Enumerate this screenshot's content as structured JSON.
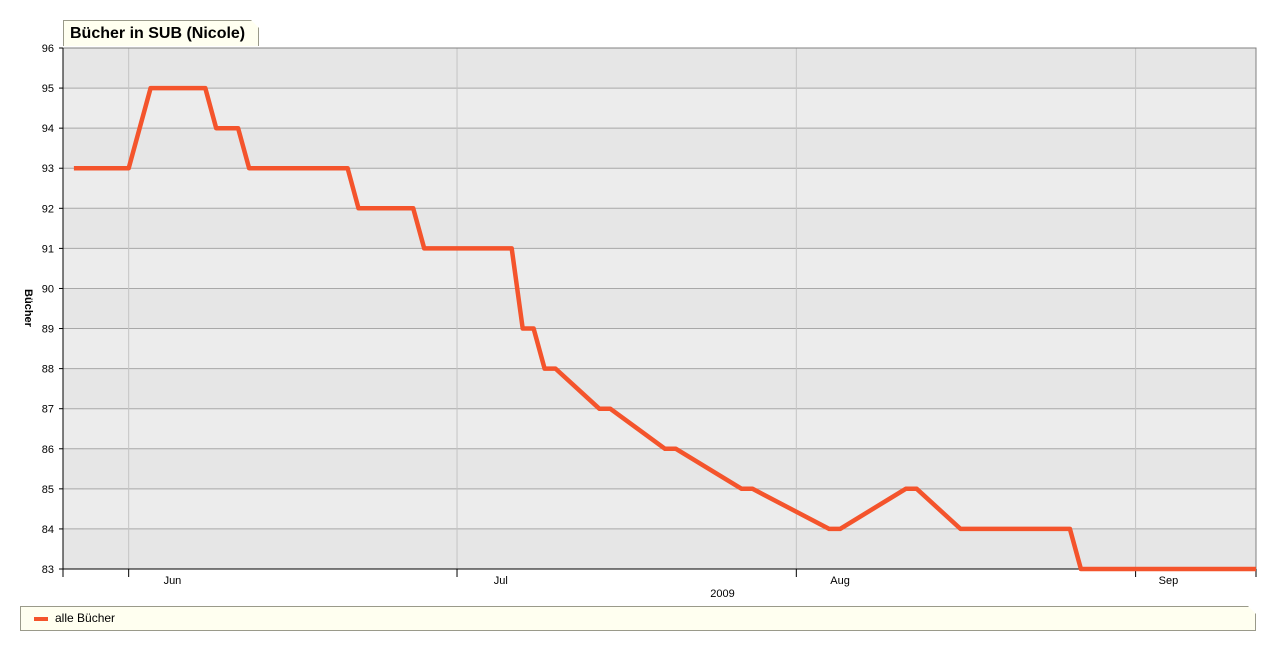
{
  "chart_data": {
    "type": "line",
    "title": "Bücher in SUB (Nicole)",
    "ylabel": "Bücher",
    "xlabel": "2009",
    "ylim": [
      83,
      96
    ],
    "yticks": [
      83,
      84,
      85,
      86,
      87,
      88,
      89,
      90,
      91,
      92,
      93,
      94,
      95,
      96
    ],
    "x_range": [
      "2009-05-26",
      "2009-09-12"
    ],
    "month_labels": [
      {
        "label": "Jun",
        "date": "2009-06-05"
      },
      {
        "label": "Jul",
        "date": "2009-07-05"
      },
      {
        "label": "Aug",
        "date": "2009-08-05"
      },
      {
        "label": "Sep",
        "date": "2009-09-04"
      }
    ],
    "grid": true,
    "legend_position": "bottom",
    "series": [
      {
        "name": "alle Bücher",
        "color": "#f4542c",
        "x": [
          "2009-05-27",
          "2009-06-01",
          "2009-06-03",
          "2009-06-08",
          "2009-06-09",
          "2009-06-11",
          "2009-06-12",
          "2009-06-21",
          "2009-06-22",
          "2009-06-27",
          "2009-06-28",
          "2009-07-06",
          "2009-07-07",
          "2009-07-08",
          "2009-07-09",
          "2009-07-10",
          "2009-07-14",
          "2009-07-15",
          "2009-07-20",
          "2009-07-21",
          "2009-07-27",
          "2009-07-28",
          "2009-08-04",
          "2009-08-05",
          "2009-08-11",
          "2009-08-12",
          "2009-08-16",
          "2009-08-17",
          "2009-08-18",
          "2009-08-19",
          "2009-08-26",
          "2009-08-27",
          "2009-08-28",
          "2009-09-12"
        ],
        "y": [
          93,
          93,
          95,
          95,
          94,
          94,
          93,
          93,
          92,
          92,
          91,
          91,
          89,
          89,
          88,
          88,
          87,
          87,
          86,
          86,
          85,
          85,
          84,
          84,
          85,
          85,
          84,
          84,
          84,
          84,
          84,
          83,
          83,
          83
        ]
      }
    ]
  }
}
